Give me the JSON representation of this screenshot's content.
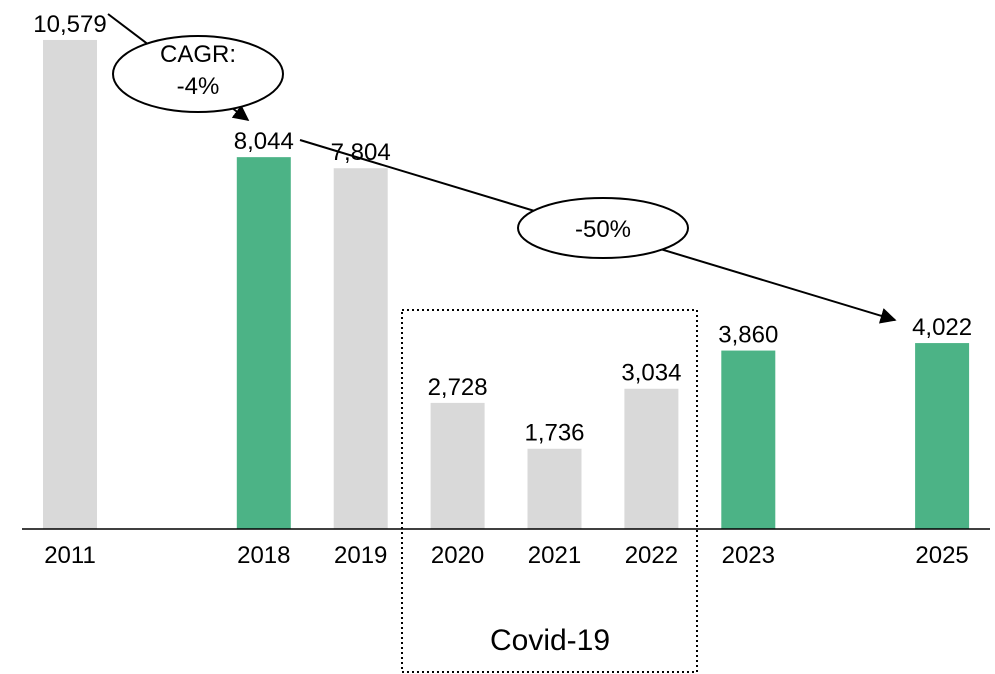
{
  "chart_data": {
    "type": "bar",
    "categories": [
      "2011",
      "2018",
      "2019",
      "2020",
      "2021",
      "2022",
      "2023",
      "2025"
    ],
    "values": [
      10579,
      8044,
      7804,
      2728,
      1736,
      3034,
      3860,
      4022
    ],
    "value_labels": [
      "10,579",
      "8,044",
      "7,804",
      "2,728",
      "1,736",
      "3,034",
      "3,860",
      "4,022"
    ],
    "colors": [
      "#d9d9d9",
      "#4cb386",
      "#d9d9d9",
      "#d9d9d9",
      "#d9d9d9",
      "#d9d9d9",
      "#4cb386",
      "#4cb386"
    ],
    "ylim": [
      0,
      11000
    ],
    "annotations": {
      "cagr": [
        "CAGR:",
        "-4%"
      ],
      "change": "-50%",
      "group_label": "Covid-19"
    }
  }
}
